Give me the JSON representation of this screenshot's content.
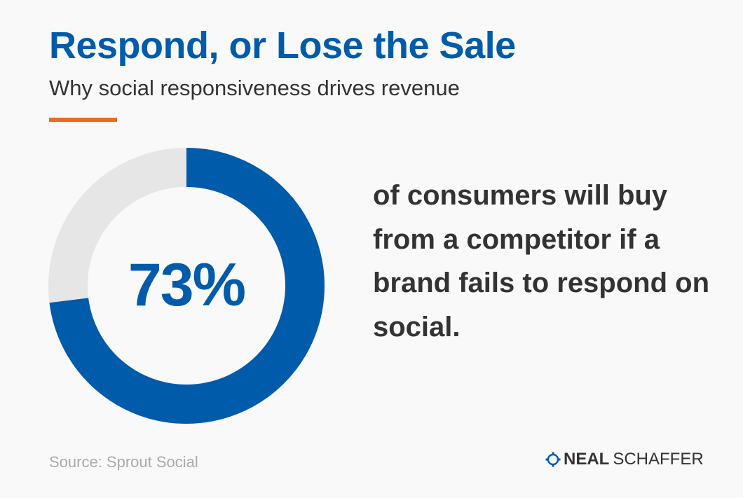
{
  "header": {
    "title": "Respond, or Lose the Sale",
    "subtitle": "Why social responsiveness drives revenue"
  },
  "chart_data": {
    "type": "pie",
    "style": "donut",
    "categories": [
      "73%"
    ],
    "values": [
      73
    ],
    "center_label": "73%",
    "colors": {
      "value": "#005baa",
      "remainder": "#e6e6e6"
    }
  },
  "statement": "of consumers will buy from a competitor if a brand fails to respond on social.",
  "footer": {
    "source": "Source: Sprout Social",
    "brand_bold": "NEAL",
    "brand_light": "SCHAFFER",
    "brand_icon": "gear-icon"
  },
  "colors": {
    "title": "#005baa",
    "accent": "#ee6b1f",
    "text": "#333333",
    "muted": "#aaaaaa",
    "brand_icon": "#005baa"
  }
}
